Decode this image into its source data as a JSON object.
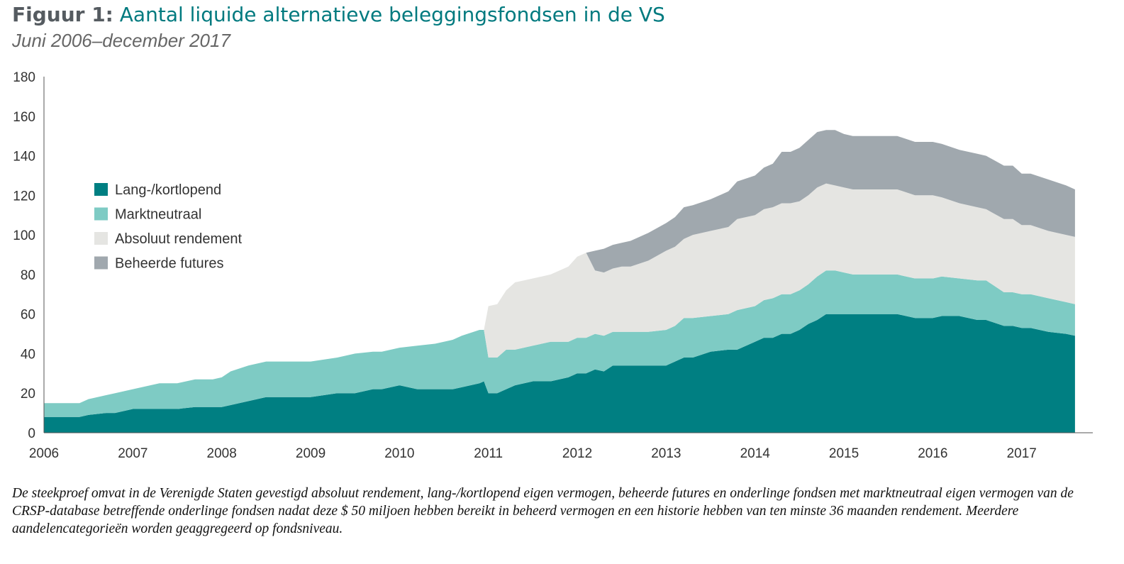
{
  "title_prefix": "Figuur 1:",
  "title_text": "Aantal liquide alternatieve beleggingsfondsen in de VS",
  "subtitle": "Juni 2006–december 2017",
  "caption": "De steekproef omvat in de Verenigde Staten gevestigd absoluut rendement, lang-/kortlopend eigen vermogen, beheerde futures en onderlinge fondsen met marktneutraal eigen vermogen van de CRSP-database betreffende onderlinge fondsen nadat deze $ 50 miljoen hebben bereikt in beheerd vermogen en een historie hebben van ten minste 36 maanden rendement. Meerdere aandelencategorieën worden geaggregeerd op fondsniveau.",
  "chart_data": {
    "type": "area",
    "stacked": true,
    "title": "Aantal liquide alternatieve beleggingsfondsen in de VS",
    "subtitle": "Juni 2006–december 2017",
    "xlabel": "",
    "ylabel": "",
    "xlim": [
      2006.0,
      2017.8
    ],
    "ylim": [
      0,
      180
    ],
    "yticks": [
      0,
      20,
      40,
      60,
      80,
      100,
      120,
      140,
      160,
      180
    ],
    "xticks": [
      "2006",
      "2007",
      "2008",
      "2009",
      "2010",
      "2011",
      "2012",
      "2013",
      "2014",
      "2015",
      "2016",
      "2017"
    ],
    "legend_position": "top-left",
    "grid": false,
    "x": [
      2006.0,
      2006.3,
      2006.4,
      2006.5,
      2006.7,
      2006.8,
      2007.0,
      2007.3,
      2007.5,
      2007.7,
      2007.9,
      2008.0,
      2008.1,
      2008.3,
      2008.5,
      2008.8,
      2009.0,
      2009.3,
      2009.5,
      2009.7,
      2009.8,
      2010.0,
      2010.2,
      2010.4,
      2010.6,
      2010.7,
      2010.9,
      2010.95,
      2011.0,
      2011.1,
      2011.2,
      2011.3,
      2011.5,
      2011.6,
      2011.7,
      2011.9,
      2012.0,
      2012.1,
      2012.2,
      2012.3,
      2012.4,
      2012.5,
      2012.6,
      2012.8,
      2013.0,
      2013.1,
      2013.2,
      2013.3,
      2013.5,
      2013.7,
      2013.8,
      2014.0,
      2014.1,
      2014.2,
      2014.3,
      2014.4,
      2014.5,
      2014.6,
      2014.7,
      2014.8,
      2014.9,
      2015.0,
      2015.1,
      2015.3,
      2015.5,
      2015.6,
      2015.8,
      2016.0,
      2016.1,
      2016.3,
      2016.5,
      2016.6,
      2016.8,
      2016.9,
      2017.0,
      2017.1,
      2017.3,
      2017.5,
      2017.6
    ],
    "series": [
      {
        "name": "Lang-/kortlopend",
        "color": "#007f82",
        "values": [
          8,
          8,
          8,
          9,
          10,
          10,
          12,
          12,
          12,
          13,
          13,
          13,
          14,
          16,
          18,
          18,
          18,
          20,
          20,
          22,
          22,
          24,
          22,
          22,
          22,
          23,
          25,
          26,
          20,
          20,
          22,
          24,
          26,
          26,
          26,
          28,
          30,
          30,
          32,
          31,
          34,
          34,
          34,
          34,
          34,
          36,
          38,
          38,
          41,
          42,
          42,
          46,
          48,
          48,
          50,
          50,
          52,
          55,
          57,
          60,
          60,
          60,
          60,
          60,
          60,
          60,
          58,
          58,
          59,
          59,
          57,
          57,
          54,
          54,
          53,
          53,
          51,
          50,
          49
        ]
      },
      {
        "name": "Marktneutraal",
        "color": "#7ecbc4",
        "values": [
          7,
          7,
          7,
          8,
          9,
          10,
          10,
          13,
          13,
          14,
          14,
          15,
          17,
          18,
          18,
          18,
          18,
          18,
          20,
          19,
          19,
          19,
          22,
          23,
          25,
          26,
          27,
          26,
          18,
          18,
          20,
          18,
          18,
          19,
          20,
          18,
          18,
          18,
          18,
          18,
          17,
          17,
          17,
          17,
          18,
          18,
          20,
          20,
          18,
          18,
          20,
          18,
          19,
          20,
          20,
          20,
          20,
          20,
          22,
          22,
          22,
          21,
          20,
          20,
          20,
          20,
          20,
          20,
          20,
          19,
          20,
          20,
          17,
          17,
          17,
          17,
          17,
          16,
          16
        ]
      },
      {
        "name": "Absoluut rendement",
        "color": "#e5e5e2",
        "values": [
          0,
          0,
          0,
          0,
          0,
          0,
          0,
          0,
          0,
          0,
          0,
          0,
          0,
          0,
          0,
          0,
          0,
          0,
          0,
          0,
          0,
          0,
          0,
          0,
          0,
          0,
          0,
          0,
          26,
          27,
          30,
          34,
          34,
          34,
          34,
          38,
          41,
          43,
          32,
          32,
          32,
          33,
          33,
          36,
          40,
          40,
          40,
          42,
          43,
          44,
          46,
          46,
          46,
          46,
          46,
          46,
          45,
          45,
          45,
          44,
          43,
          43,
          43,
          43,
          43,
          43,
          42,
          42,
          40,
          38,
          37,
          36,
          37,
          37,
          35,
          35,
          34,
          34,
          34
        ]
      },
      {
        "name": "Beheerde futures",
        "color": "#a0a8ae",
        "values": [
          0,
          0,
          0,
          0,
          0,
          0,
          0,
          0,
          0,
          0,
          0,
          0,
          0,
          0,
          0,
          0,
          0,
          0,
          0,
          0,
          0,
          0,
          0,
          0,
          0,
          0,
          0,
          0,
          0,
          0,
          0,
          0,
          0,
          0,
          0,
          0,
          0,
          0,
          10,
          12,
          12,
          12,
          13,
          14,
          14,
          15,
          16,
          15,
          16,
          18,
          19,
          20,
          21,
          22,
          26,
          26,
          27,
          28,
          28,
          27,
          28,
          27,
          27,
          27,
          27,
          27,
          27,
          27,
          27,
          27,
          27,
          27,
          27,
          27,
          26,
          26,
          26,
          25,
          24
        ]
      }
    ]
  }
}
